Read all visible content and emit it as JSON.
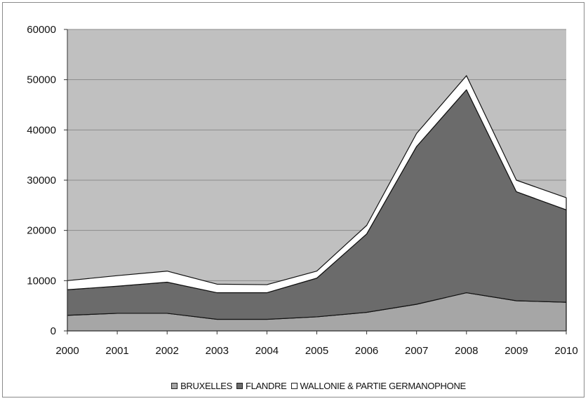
{
  "chart_data": {
    "type": "area",
    "stacked": true,
    "x": [
      2000,
      2001,
      2002,
      2003,
      2004,
      2005,
      2006,
      2007,
      2008,
      2009,
      2010
    ],
    "series": [
      {
        "name": "BRUXELLES",
        "color": "#a6a6a6",
        "values": [
          3100,
          3500,
          3500,
          2300,
          2300,
          2800,
          3700,
          5300,
          7600,
          6000,
          5700
        ]
      },
      {
        "name": "FLANDRE",
        "color": "#6b6b6b",
        "values": [
          5100,
          5400,
          6200,
          5300,
          5300,
          7700,
          15600,
          31400,
          40400,
          21700,
          18400
        ]
      },
      {
        "name": "WALLONIE & PARTIE GERMANOPHONE",
        "color": "#ffffff",
        "values": [
          1800,
          2100,
          2200,
          1700,
          1600,
          1400,
          1700,
          2600,
          2800,
          2300,
          2400
        ]
      }
    ],
    "ylim": [
      0,
      60000
    ],
    "yticks": [
      0,
      10000,
      20000,
      30000,
      40000,
      50000,
      60000
    ],
    "plot_background": "#c0c0c0",
    "grid": true,
    "legend_position": "bottom"
  }
}
